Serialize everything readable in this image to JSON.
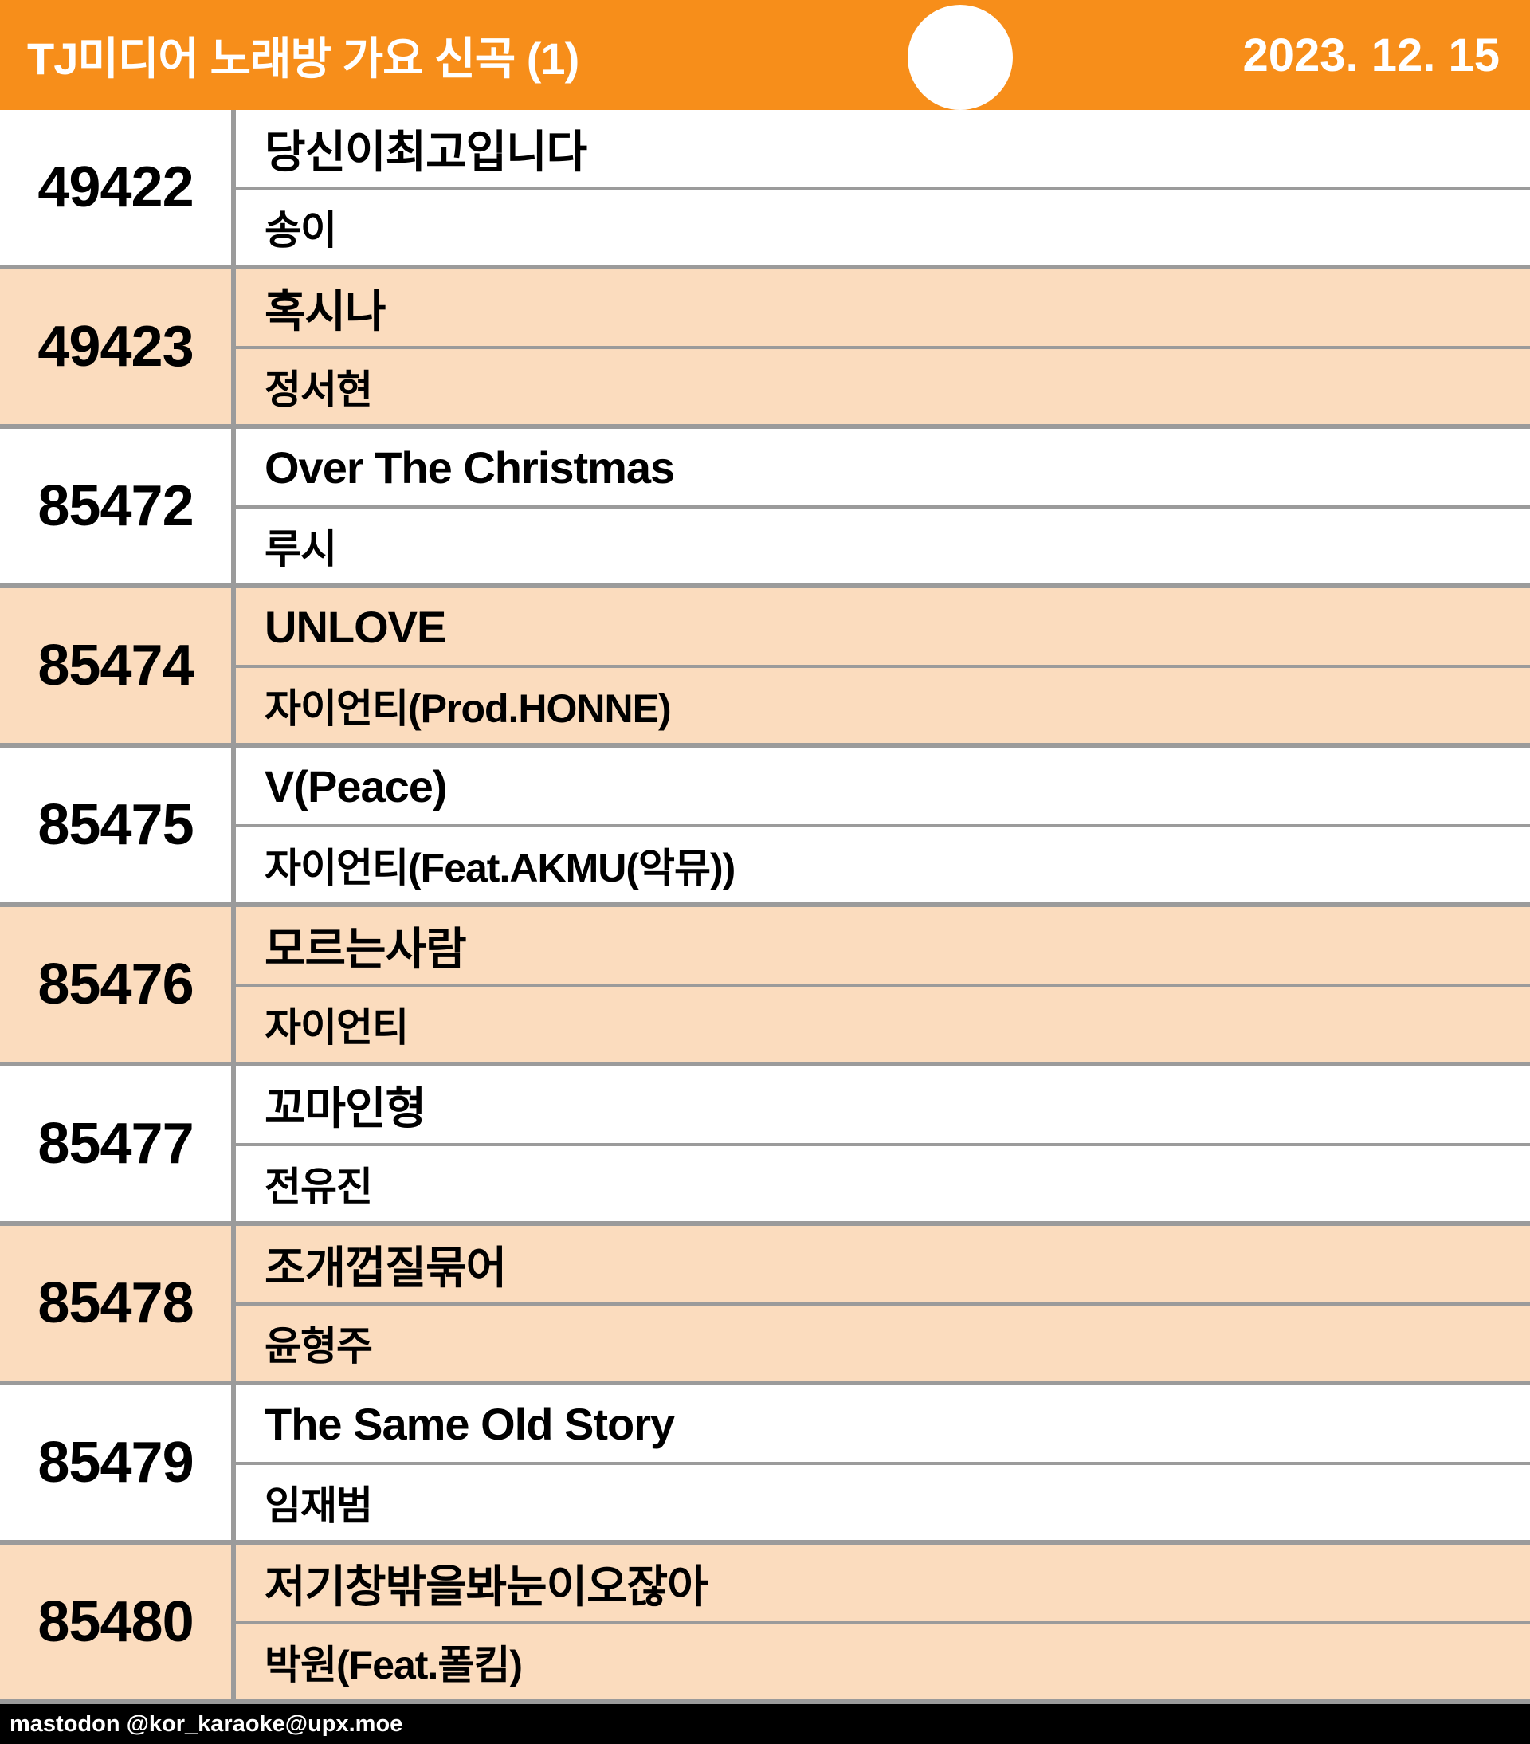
{
  "header": {
    "title": "TJ미디어 노래방 가요 신곡 (1)",
    "date": "2023. 12. 15",
    "bg_color": "#F78E1A",
    "text_color": "#FFFFFF"
  },
  "table": {
    "alt_row_color": "#FBDCBE",
    "border_color": "#9B9B9B",
    "rows": [
      {
        "number": "49422",
        "title": "당신이최고입니다",
        "artist": "송이"
      },
      {
        "number": "49423",
        "title": "혹시나",
        "artist": "정서현"
      },
      {
        "number": "85472",
        "title": "Over The Christmas",
        "artist": "루시"
      },
      {
        "number": "85474",
        "title": "UNLOVE",
        "artist": "자이언티(Prod.HONNE)"
      },
      {
        "number": "85475",
        "title": "V(Peace)",
        "artist": "자이언티(Feat.AKMU(악뮤))"
      },
      {
        "number": "85476",
        "title": "모르는사람",
        "artist": "자이언티"
      },
      {
        "number": "85477",
        "title": "꼬마인형",
        "artist": "전유진"
      },
      {
        "number": "85478",
        "title": "조개껍질묶어",
        "artist": "윤형주"
      },
      {
        "number": "85479",
        "title": "The Same Old Story",
        "artist": "임재범"
      },
      {
        "number": "85480",
        "title": "저기창밖을봐눈이오잖아",
        "artist": "박원(Feat.폴킴)"
      }
    ]
  },
  "footer": {
    "text": "mastodon @kor_karaoke@upx.moe",
    "bg_color": "#000000"
  }
}
